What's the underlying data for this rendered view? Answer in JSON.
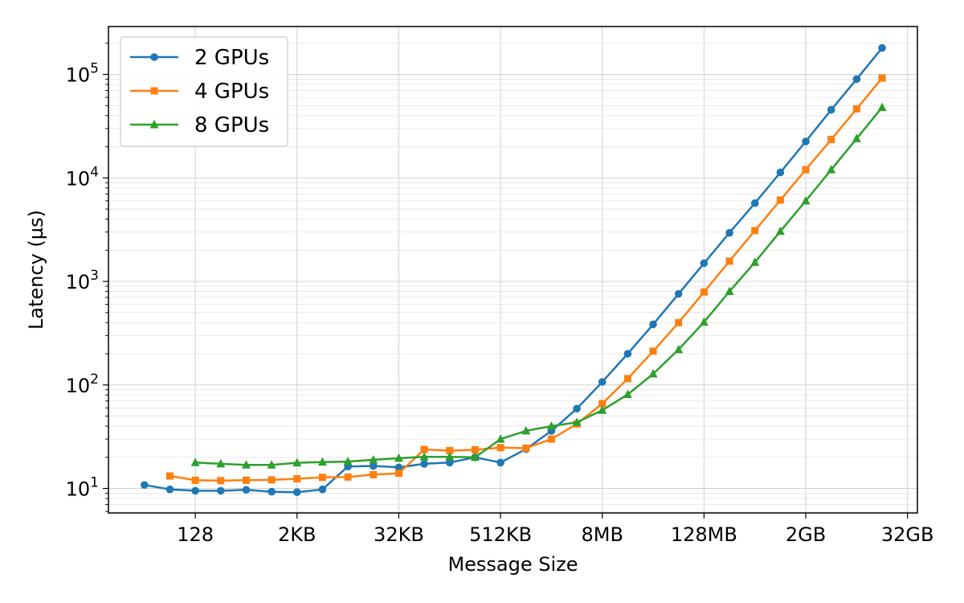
{
  "chart_data": {
    "type": "line",
    "xlabel": "Message Size",
    "ylabel": "Latency (µs)",
    "x_scale": "log2",
    "y_scale": "log10",
    "x_unit": "bytes",
    "xlim_bytes": [
      12,
      45000000000
    ],
    "ylim": [
      5.8,
      290000
    ],
    "x_ticks": [
      {
        "value": 128,
        "label": "128"
      },
      {
        "value": 2048,
        "label": "2KB"
      },
      {
        "value": 32768,
        "label": "32KB"
      },
      {
        "value": 524288,
        "label": "512KB"
      },
      {
        "value": 8388608,
        "label": "8MB"
      },
      {
        "value": 134217728,
        "label": "128MB"
      },
      {
        "value": 2147483648,
        "label": "2GB"
      },
      {
        "value": 34359738368,
        "label": "32GB"
      }
    ],
    "y_ticks": [
      {
        "value": 10,
        "base": "10",
        "exp": "1"
      },
      {
        "value": 100,
        "base": "10",
        "exp": "2"
      },
      {
        "value": 1000,
        "base": "10",
        "exp": "3"
      },
      {
        "value": 10000,
        "base": "10",
        "exp": "4"
      },
      {
        "value": 100000,
        "base": "10",
        "exp": "5"
      }
    ],
    "grid": true,
    "legend_position": "top-left",
    "series": [
      {
        "name": "2 GPUs",
        "color": "#1f77b4",
        "marker": "circle",
        "x": [
          32,
          64,
          128,
          256,
          512,
          1024,
          2048,
          4096,
          8192,
          16384,
          32768,
          65536,
          131072,
          262144,
          524288,
          1048576,
          2097152,
          4194304,
          8388608,
          16777216,
          33554432,
          67108864,
          134217728,
          268435456,
          536870912,
          1073741824,
          2147483648,
          4294967296,
          8589934592,
          17179869184
        ],
        "y": [
          10.8,
          9.8,
          9.5,
          9.5,
          9.7,
          9.3,
          9.2,
          9.8,
          16.3,
          16.5,
          16.0,
          17.3,
          17.8,
          20.0,
          17.8,
          24.0,
          36,
          59,
          107,
          200,
          385,
          760,
          1500,
          2950,
          5700,
          11300,
          22500,
          45500,
          90000,
          180000
        ]
      },
      {
        "name": "4 GPUs",
        "color": "#ff7f0e",
        "marker": "square",
        "x": [
          64,
          128,
          256,
          512,
          1024,
          2048,
          4096,
          8192,
          16384,
          32768,
          65536,
          131072,
          262144,
          524288,
          1048576,
          2097152,
          4194304,
          8388608,
          16777216,
          33554432,
          67108864,
          134217728,
          268435456,
          536870912,
          1073741824,
          2147483648,
          4294967296,
          8589934592,
          17179869184
        ],
        "y": [
          13.2,
          12.0,
          11.9,
          12.0,
          12.1,
          12.4,
          12.8,
          12.9,
          13.6,
          14.0,
          23.8,
          23.2,
          23.6,
          24.8,
          24.5,
          30,
          42,
          66,
          115,
          212,
          400,
          790,
          1570,
          3100,
          6100,
          12000,
          23500,
          46500,
          92000
        ]
      },
      {
        "name": "8 GPUs",
        "color": "#2ca02c",
        "marker": "triangle",
        "x": [
          128,
          256,
          512,
          1024,
          2048,
          4096,
          8192,
          16384,
          32768,
          65536,
          131072,
          262144,
          524288,
          1048576,
          2097152,
          4194304,
          8388608,
          16777216,
          33554432,
          67108864,
          134217728,
          268435456,
          536870912,
          1073741824,
          2147483648,
          4294967296,
          8589934592,
          17179869184
        ],
        "y": [
          17.8,
          17.3,
          16.9,
          16.9,
          17.7,
          18.0,
          18.2,
          18.9,
          19.6,
          20.2,
          20.2,
          20.0,
          30.0,
          36.0,
          40.0,
          43.5,
          57,
          81,
          128,
          220,
          405,
          800,
          1530,
          3050,
          6000,
          12000,
          24000,
          48000
        ]
      }
    ]
  }
}
